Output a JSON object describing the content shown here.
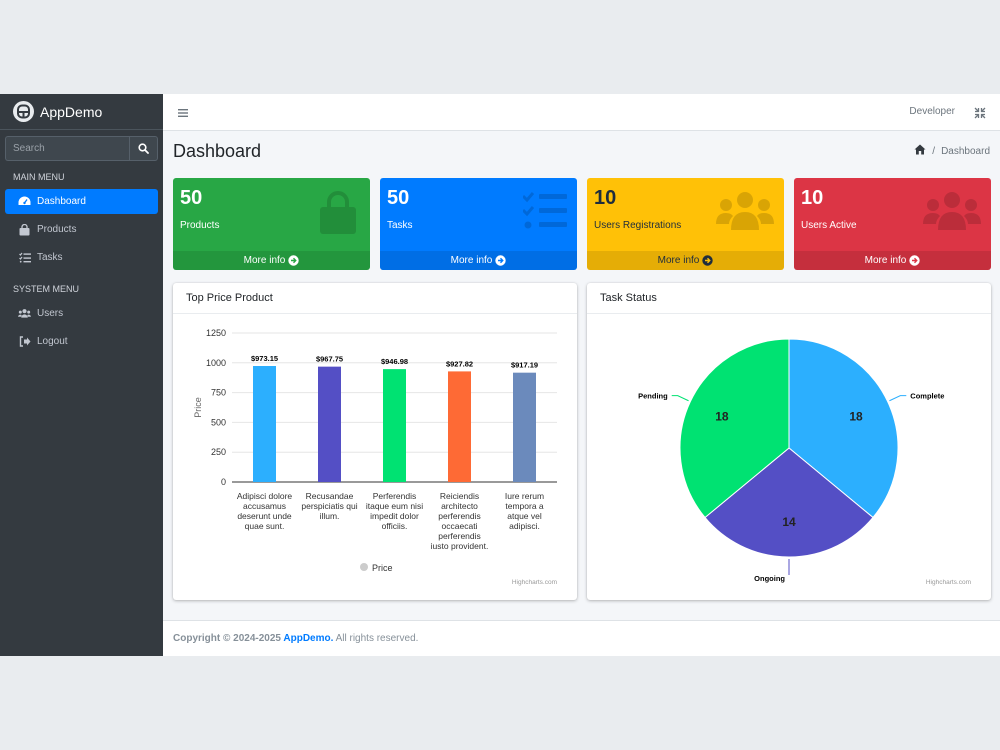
{
  "brand": {
    "name_bold": "App",
    "name_rest": "Demo"
  },
  "search": {
    "placeholder": "Search"
  },
  "menus": {
    "main_header": "MAIN MENU",
    "main": [
      {
        "label": "Dashboard",
        "icon": "dashboard-icon"
      },
      {
        "label": "Products",
        "icon": "shopping-bag-icon"
      },
      {
        "label": "Tasks",
        "icon": "list-check-icon"
      }
    ],
    "system_header": "SYSTEM MENU",
    "system": [
      {
        "label": "Users",
        "icon": "users-icon"
      },
      {
        "label": "Logout",
        "icon": "logout-icon"
      }
    ]
  },
  "topbar": {
    "user": "Developer"
  },
  "page": {
    "title": "Dashboard",
    "breadcrumb_current": "Dashboard"
  },
  "boxes": [
    {
      "value": "50",
      "label": "Products",
      "more": "More info",
      "color": "#28a745",
      "icon": "shopping-bag-icon"
    },
    {
      "value": "50",
      "label": "Tasks",
      "more": "More info",
      "color": "#007bff",
      "icon": "list-check-icon"
    },
    {
      "value": "10",
      "label": "Users Registrations",
      "more": "More info",
      "color": "#ffc107",
      "icon": "users-icon"
    },
    {
      "value": "10",
      "label": "Users Active",
      "more": "More info",
      "color": "#dc3545",
      "icon": "users-icon"
    }
  ],
  "cards": {
    "left_title": "Top Price Product",
    "right_title": "Task Status"
  },
  "chart_data": [
    {
      "type": "bar",
      "title": "",
      "ylabel": "Price",
      "ylim": [
        0,
        1250
      ],
      "yticks": [
        0,
        250,
        500,
        750,
        1000,
        1250
      ],
      "grid": true,
      "legend": "bottom",
      "categories": [
        "Adipisci dolore accusamus deserunt unde quae sunt.",
        "Recusandae perspiciatis qui illum.",
        "Perferendis itaque eum nisi impedit dolor officiis.",
        "Reiciendis architecto perferendis occaecati perferendis iusto provident.",
        "Iure rerum tempora a atque vel adipisci."
      ],
      "category_lines": [
        [
          "Adipisci dolore",
          "accusamus",
          "deserunt unde",
          "quae sunt."
        ],
        [
          "Recusandae",
          "perspiciatis qui",
          "illum."
        ],
        [
          "Perferendis",
          "itaque eum nisi",
          "impedit dolor",
          "officiis."
        ],
        [
          "Reiciendis",
          "architecto",
          "perferendis",
          "occaecati",
          "perferendis",
          "iusto provident."
        ],
        [
          "Iure rerum",
          "tempora a",
          "atque vel",
          "adipisci."
        ]
      ],
      "series": [
        {
          "name": "Price",
          "values": [
            973.15,
            967.75,
            946.98,
            927.82,
            917.19
          ]
        }
      ],
      "data_labels": [
        "$973.15",
        "$967.75",
        "$946.98",
        "$927.82",
        "$917.19"
      ],
      "colors": [
        "#2caffe",
        "#544fc5",
        "#00e272",
        "#fe6a35",
        "#6b8abc"
      ],
      "credits": "Highcharts.com"
    },
    {
      "type": "pie",
      "title": "",
      "labels": [
        "Complete",
        "Ongoing",
        "Pending"
      ],
      "values": [
        18,
        14,
        18
      ],
      "colors": [
        "#2caffe",
        "#544fc5",
        "#00e272"
      ],
      "credits": "Highcharts.com"
    }
  ],
  "footer": {
    "prefix": "Copyright © 2024-2025 ",
    "brand": "AppDemo.",
    "suffix": " All rights reserved."
  }
}
